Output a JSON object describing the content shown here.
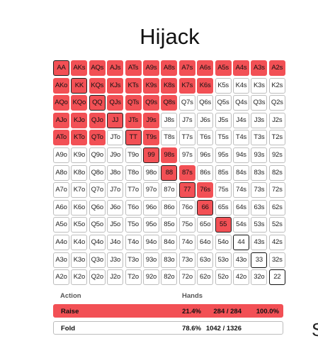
{
  "title": "Hijack",
  "grid": {
    "rows": [
      [
        "AA",
        "AKs",
        "AQs",
        "AJs",
        "ATs",
        "A9s",
        "A8s",
        "A7s",
        "A6s",
        "A5s",
        "A4s",
        "A3s",
        "A2s"
      ],
      [
        "AKo",
        "KK",
        "KQs",
        "KJs",
        "KTs",
        "K9s",
        "K8s",
        "K7s",
        "K6s",
        "K5s",
        "K4s",
        "K3s",
        "K2s"
      ],
      [
        "AQo",
        "KQo",
        "QQ",
        "QJs",
        "QTs",
        "Q9s",
        "Q8s",
        "Q7s",
        "Q6s",
        "Q5s",
        "Q4s",
        "Q3s",
        "Q2s"
      ],
      [
        "AJo",
        "KJo",
        "QJo",
        "JJ",
        "JTs",
        "J9s",
        "J8s",
        "J7s",
        "J6s",
        "J5s",
        "J4s",
        "J3s",
        "J2s"
      ],
      [
        "ATo",
        "KTo",
        "QTo",
        "JTo",
        "TT",
        "T9s",
        "T8s",
        "T7s",
        "T6s",
        "T5s",
        "T4s",
        "T3s",
        "T2s"
      ],
      [
        "A9o",
        "K9o",
        "Q9o",
        "J9o",
        "T9o",
        "99",
        "98s",
        "97s",
        "96s",
        "95s",
        "94s",
        "93s",
        "92s"
      ],
      [
        "A8o",
        "K8o",
        "Q8o",
        "J8o",
        "T8o",
        "98o",
        "88",
        "87s",
        "86s",
        "85s",
        "84s",
        "83s",
        "82s"
      ],
      [
        "A7o",
        "K7o",
        "Q7o",
        "J7o",
        "T7o",
        "97o",
        "87o",
        "77",
        "76s",
        "75s",
        "74s",
        "73s",
        "72s"
      ],
      [
        "A6o",
        "K6o",
        "Q6o",
        "J6o",
        "T6o",
        "96o",
        "86o",
        "76o",
        "66",
        "65s",
        "64s",
        "63s",
        "62s"
      ],
      [
        "A5o",
        "K5o",
        "Q5o",
        "J5o",
        "T5o",
        "95o",
        "85o",
        "75o",
        "65o",
        "55",
        "54s",
        "53s",
        "52s"
      ],
      [
        "A4o",
        "K4o",
        "Q4o",
        "J4o",
        "T4o",
        "94o",
        "84o",
        "74o",
        "64o",
        "54o",
        "44",
        "43s",
        "42s"
      ],
      [
        "A3o",
        "K3o",
        "Q3o",
        "J3o",
        "T3o",
        "93o",
        "83o",
        "73o",
        "63o",
        "53o",
        "43o",
        "33",
        "32s"
      ],
      [
        "A2o",
        "K2o",
        "Q2o",
        "J2o",
        "T2o",
        "92o",
        "82o",
        "72o",
        "62o",
        "52o",
        "42o",
        "32o",
        "22"
      ]
    ],
    "raise": [
      [
        1,
        1,
        1,
        1,
        1,
        1,
        1,
        1,
        1,
        1,
        1,
        1,
        1
      ],
      [
        1,
        1,
        1,
        1,
        1,
        1,
        1,
        1,
        1,
        0,
        0,
        0,
        0
      ],
      [
        1,
        1,
        1,
        1,
        1,
        1,
        1,
        0,
        0,
        0,
        0,
        0,
        0
      ],
      [
        1,
        1,
        1,
        1,
        1,
        1,
        0,
        0,
        0,
        0,
        0,
        0,
        0
      ],
      [
        1,
        1,
        1,
        0,
        1,
        1,
        0,
        0,
        0,
        0,
        0,
        0,
        0
      ],
      [
        0,
        0,
        0,
        0,
        0,
        1,
        1,
        0,
        0,
        0,
        0,
        0,
        0
      ],
      [
        0,
        0,
        0,
        0,
        0,
        0,
        1,
        1,
        0,
        0,
        0,
        0,
        0
      ],
      [
        0,
        0,
        0,
        0,
        0,
        0,
        0,
        1,
        1,
        0,
        0,
        0,
        0
      ],
      [
        0,
        0,
        0,
        0,
        0,
        0,
        0,
        0,
        1,
        0,
        0,
        0,
        0
      ],
      [
        0,
        0,
        0,
        0,
        0,
        0,
        0,
        0,
        0,
        1,
        0,
        0,
        0
      ],
      [
        0,
        0,
        0,
        0,
        0,
        0,
        0,
        0,
        0,
        0,
        0,
        0,
        0
      ],
      [
        0,
        0,
        0,
        0,
        0,
        0,
        0,
        0,
        0,
        0,
        0,
        0,
        0
      ],
      [
        0,
        0,
        0,
        0,
        0,
        0,
        0,
        0,
        0,
        0,
        0,
        0,
        0
      ]
    ],
    "raise_color": "#f25055",
    "fold_color": "#ffffff"
  },
  "table": {
    "header_action": "Action",
    "header_hands": "Hands",
    "raise": {
      "action": "Raise",
      "percent": "21.4%",
      "combos": "284 / 284",
      "pct_of_range": "100.0%"
    },
    "fold": {
      "action": "Fold",
      "percent": "78.6%",
      "combos": "1042 / 1326"
    }
  },
  "edge_char": "S"
}
